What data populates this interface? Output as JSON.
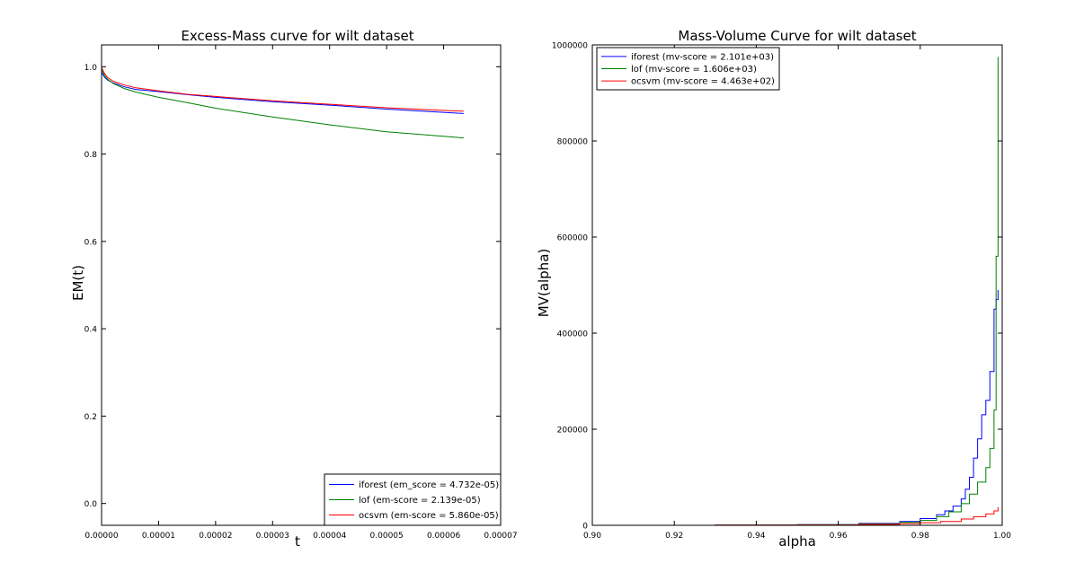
{
  "chart_data": [
    {
      "type": "line",
      "title": "Excess-Mass curve for wilt dataset",
      "xlabel": "t",
      "ylabel": "EM(t)",
      "xlim": [
        0,
        7e-05
      ],
      "ylim": [
        -0.05,
        1.05
      ],
      "xticks": [
        "0.00000",
        "0.00001",
        "0.00002",
        "0.00003",
        "0.00004",
        "0.00005",
        "0.00006",
        "0.00007"
      ],
      "xtick_values": [
        0,
        1e-05,
        2e-05,
        3e-05,
        4e-05,
        5e-05,
        6e-05,
        7e-05
      ],
      "yticks": [
        "0.0",
        "0.2",
        "0.4",
        "0.6",
        "0.8",
        "1.0"
      ],
      "ytick_values": [
        0.0,
        0.2,
        0.4,
        0.6,
        0.8,
        1.0
      ],
      "grid": false,
      "legend": "bottom-right",
      "series": [
        {
          "name": "iforest (em_score = 4.732e-05)",
          "color": "#0000ff",
          "x": [
            0,
            5e-07,
            1e-06,
            2e-06,
            4e-06,
            6e-06,
            1e-05,
            1.5e-05,
            2e-05,
            3e-05,
            4e-05,
            5e-05,
            6.35e-05
          ],
          "y": [
            0.988,
            0.976,
            0.97,
            0.963,
            0.954,
            0.948,
            0.943,
            0.936,
            0.93,
            0.92,
            0.912,
            0.903,
            0.893
          ]
        },
        {
          "name": "lof (em-score = 2.139e-05)",
          "color": "#008000",
          "x": [
            0,
            5e-07,
            1e-06,
            2e-06,
            4e-06,
            6e-06,
            1e-05,
            1.5e-05,
            2e-05,
            3e-05,
            4e-05,
            5e-05,
            6.35e-05
          ],
          "y": [
            0.995,
            0.98,
            0.972,
            0.962,
            0.95,
            0.942,
            0.93,
            0.918,
            0.905,
            0.885,
            0.867,
            0.851,
            0.837
          ]
        },
        {
          "name": "ocsvm (em-score = 5.860e-05)",
          "color": "#ff0000",
          "x": [
            0,
            5e-07,
            1e-06,
            2e-06,
            4e-06,
            6e-06,
            1e-05,
            1.5e-05,
            2e-05,
            3e-05,
            4e-05,
            5e-05,
            6.35e-05
          ],
          "y": [
            0.998,
            0.985,
            0.976,
            0.967,
            0.958,
            0.952,
            0.945,
            0.937,
            0.932,
            0.922,
            0.914,
            0.906,
            0.898
          ]
        }
      ]
    },
    {
      "type": "line",
      "title": "Mass-Volume Curve for wilt dataset",
      "xlabel": "alpha",
      "ylabel": "MV(alpha)",
      "xlim": [
        0.9,
        1.0
      ],
      "ylim": [
        0,
        1000000
      ],
      "xticks": [
        "0.90",
        "0.92",
        "0.94",
        "0.96",
        "0.98",
        "1.00"
      ],
      "xtick_values": [
        0.9,
        0.92,
        0.94,
        0.96,
        0.98,
        1.0
      ],
      "yticks": [
        "0",
        "200000",
        "400000",
        "600000",
        "800000",
        "1000000"
      ],
      "ytick_values": [
        0,
        200000,
        400000,
        600000,
        800000,
        1000000
      ],
      "grid": false,
      "legend": "top-left",
      "series": [
        {
          "name": "iforest (mv-score = 2.101e+03)",
          "color": "#0000ff",
          "x": [
            0.9,
            0.93,
            0.95,
            0.965,
            0.975,
            0.98,
            0.984,
            0.986,
            0.988,
            0.99,
            0.991,
            0.992,
            0.993,
            0.994,
            0.995,
            0.996,
            0.997,
            0.998,
            0.9985,
            0.999
          ],
          "y": [
            0,
            500,
            1500,
            4000,
            8000,
            14000,
            22000,
            30000,
            40000,
            55000,
            75000,
            100000,
            140000,
            180000,
            230000,
            260000,
            320000,
            450000,
            470000,
            490000
          ]
        },
        {
          "name": "lof (mv-score = 1.606e+03)",
          "color": "#008000",
          "x": [
            0.9,
            0.93,
            0.95,
            0.965,
            0.975,
            0.98,
            0.984,
            0.987,
            0.99,
            0.992,
            0.994,
            0.996,
            0.997,
            0.998,
            0.9985,
            0.999
          ],
          "y": [
            0,
            400,
            1200,
            3000,
            6000,
            10000,
            18000,
            28000,
            45000,
            65000,
            90000,
            120000,
            160000,
            240000,
            560000,
            975000
          ]
        },
        {
          "name": "ocsvm (mv-score = 4.463e+02)",
          "color": "#ff0000",
          "x": [
            0.9,
            0.93,
            0.95,
            0.965,
            0.975,
            0.98,
            0.985,
            0.99,
            0.993,
            0.996,
            0.998,
            0.999
          ],
          "y": [
            0,
            300,
            800,
            1800,
            3500,
            5500,
            8000,
            13000,
            18000,
            24000,
            30000,
            38000
          ]
        }
      ]
    }
  ]
}
